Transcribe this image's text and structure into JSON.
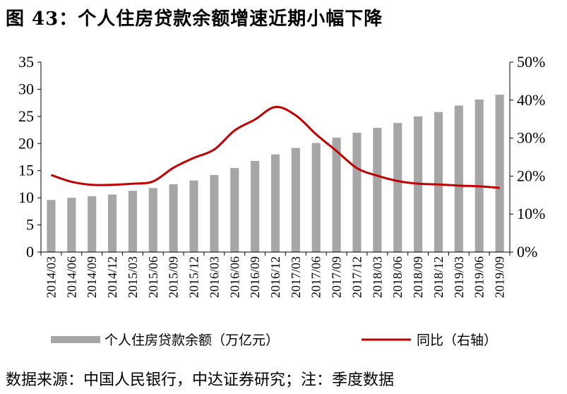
{
  "title": "图 43：个人住房贷款余额增速近期小幅下降",
  "source": "数据来源：中国人民银行，中达证券研究；注：季度数据",
  "colors": {
    "bar": "#a6a6a6",
    "line": "#c00000",
    "axis": "#000000"
  },
  "chart_data": {
    "type": "bar",
    "categories": [
      "2014/03",
      "2014/06",
      "2014/09",
      "2014/12",
      "2015/03",
      "2015/06",
      "2015/09",
      "2015/12",
      "2016/03",
      "2016/06",
      "2016/09",
      "2016/12",
      "2017/03",
      "2017/06",
      "2017/09",
      "2017/12",
      "2018/03",
      "2018/06",
      "2018/09",
      "2018/12",
      "2019/03",
      "2019/06",
      "2019/09"
    ],
    "series": [
      {
        "name": "个人住房贷款余额（万亿元）",
        "type": "bar",
        "axis": "left",
        "values": [
          9.6,
          10.0,
          10.3,
          10.6,
          11.3,
          11.8,
          12.5,
          13.2,
          14.2,
          15.5,
          16.8,
          18.0,
          19.2,
          20.1,
          21.1,
          22.0,
          22.9,
          23.8,
          25.0,
          25.8,
          27.0,
          28.1,
          29.0
        ]
      },
      {
        "name": "同比（右轴）",
        "type": "line",
        "axis": "right",
        "values": [
          20.3,
          18.5,
          17.7,
          17.7,
          18.0,
          18.6,
          22.2,
          24.8,
          27.0,
          32.0,
          34.9,
          38.2,
          36.0,
          31.0,
          26.6,
          22.1,
          20.1,
          18.7,
          18.0,
          17.8,
          17.5,
          17.3,
          16.9
        ]
      }
    ],
    "y_left": {
      "ticks": [
        "0",
        "5",
        "10",
        "15",
        "20",
        "25",
        "30",
        "35"
      ],
      "ylim": [
        0,
        35
      ]
    },
    "y_right": {
      "ticks": [
        "0%",
        "10%",
        "20%",
        "30%",
        "40%",
        "50%"
      ],
      "ylim": [
        0,
        50
      ]
    },
    "legend_position": "bottom",
    "grid": false
  }
}
